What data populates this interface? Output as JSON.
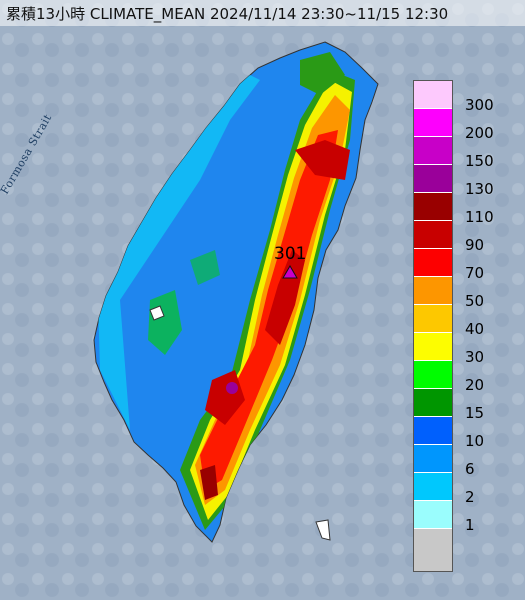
{
  "title": "累積13小時 CLIMATE_MEAN 2024/11/14 23:30~11/15 12:30",
  "strait_label": "Formosa Strait",
  "max_value_label": "301",
  "legend": [
    {
      "label": "300",
      "color": "#fdc9fd"
    },
    {
      "label": "200",
      "color": "#fd00fd"
    },
    {
      "label": "150",
      "color": "#c800c8"
    },
    {
      "label": "130",
      "color": "#9a009a"
    },
    {
      "label": "110",
      "color": "#990000"
    },
    {
      "label": "90",
      "color": "#c80000"
    },
    {
      "label": "70",
      "color": "#fd0000"
    },
    {
      "label": "50",
      "color": "#fd9600"
    },
    {
      "label": "40",
      "color": "#fdc800"
    },
    {
      "label": "30",
      "color": "#fdfd00"
    },
    {
      "label": "20",
      "color": "#00fd00"
    },
    {
      "label": "15",
      "color": "#009600"
    },
    {
      "label": "10",
      "color": "#0060fd"
    },
    {
      "label": "6",
      "color": "#0096fd"
    },
    {
      "label": "2",
      "color": "#00c8fd"
    },
    {
      "label": "1",
      "color": "#9afdfd"
    },
    {
      "label": "",
      "color": "#c8c8c8"
    }
  ]
}
